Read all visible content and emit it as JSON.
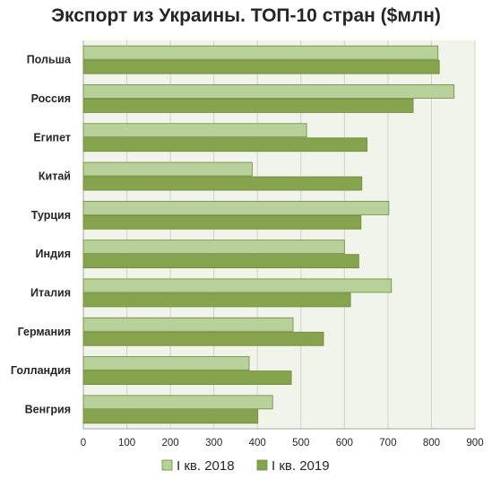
{
  "chart_data": {
    "type": "bar",
    "orientation": "horizontal",
    "title": "Экспорт из Украины. ТОП-10 стран ($млн)",
    "categories": [
      "Польша",
      "Россия",
      "Египет",
      "Китай",
      "Турция",
      "Индия",
      "Италия",
      "Германия",
      "Голландия",
      "Венгрия"
    ],
    "series": [
      {
        "name": "I кв. 2018",
        "color": "#b8d09a",
        "values": [
          815,
          852,
          513,
          388,
          702,
          600,
          708,
          482,
          381,
          435
        ]
      },
      {
        "name": "I кв. 2019",
        "color": "#86a44e",
        "values": [
          818,
          758,
          652,
          640,
          638,
          633,
          614,
          552,
          478,
          401
        ]
      }
    ],
    "xlim": [
      0,
      900
    ],
    "xticks": [
      0,
      100,
      200,
      300,
      400,
      500,
      600,
      700,
      800,
      900
    ],
    "grid": true,
    "legend_position": "bottom",
    "plot_background": "#f1f4ea",
    "gridline_color": "#d0d0d0",
    "bar_border_color": "#6d8a38"
  }
}
